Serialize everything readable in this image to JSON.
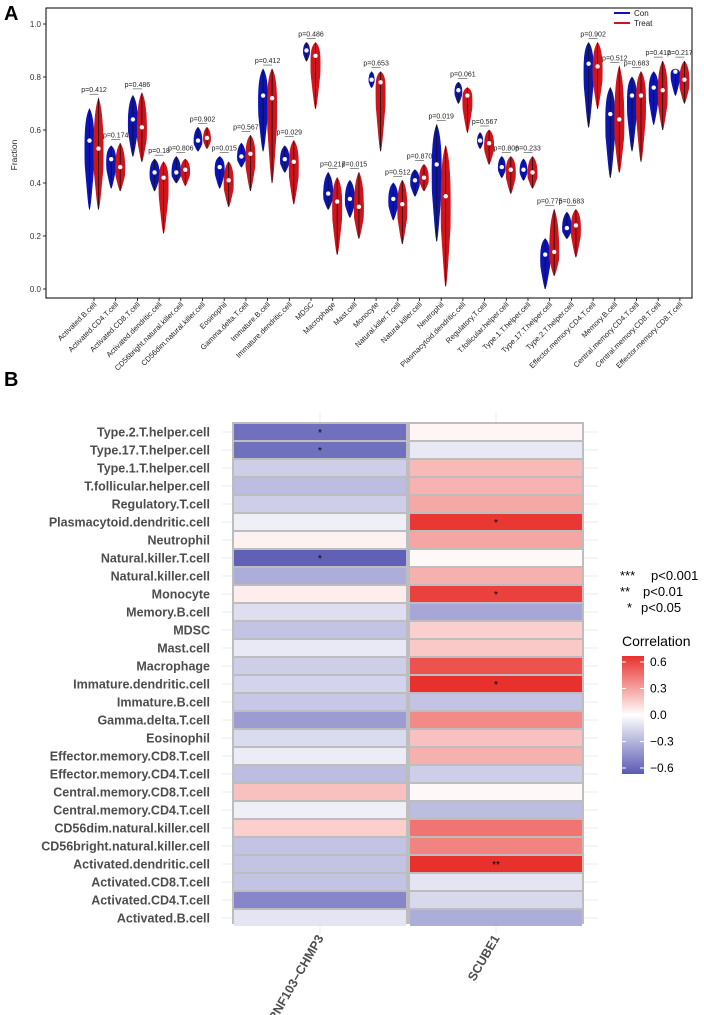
{
  "colors": {
    "con": "#0d14b4",
    "treat": "#d0141c",
    "neg": "#5a5ab4",
    "pos": "#e8302c"
  },
  "panelA": {
    "letter": "A",
    "chart_data": {
      "type": "violin",
      "ylabel": "Fraction",
      "ylim": [
        -0.05,
        1.05
      ],
      "yticks": [
        "0.0",
        "0.2",
        "0.4",
        "0.6",
        "0.8",
        "1.0"
      ],
      "legend": {
        "position": "top-right",
        "con_label": "Con",
        "treat_label": "Treat"
      },
      "categories": [
        "Activated.B.cell",
        "Activated.CD4.T.cell",
        "Activated.CD8.T.cell",
        "Activated.dendritic.cell",
        "CD56bright.natural.killer.cell",
        "CD56dim.natural.killer.cell",
        "Eosinophil",
        "Gamma.delta.T.cell",
        "Immature.B.cell",
        "Immature.dendritic.cell",
        "MDSC",
        "Macrophage",
        "Mast.cell",
        "Monocyte",
        "Natural.killer.T.cell",
        "Natural.killer.cell",
        "Neutrophil",
        "Plasmacytoid.dendritic.cell",
        "Regulatory.T.cell",
        "T.follicular.helper.cell",
        "Type.1.T.helper.cell",
        "Type.17.T.helper.cell",
        "Type.2.T.helper.cell",
        "Effector.memory.CD4.T.cell",
        "Memory.B.cell",
        "Central.memory.CD4.T.cell",
        "Central.memory.CD8.T.cell",
        "Effector.memory.CD8.T.cell"
      ],
      "pvalues": [
        "p=0.412",
        "p=0.174",
        "p=0.486",
        "p=0.18",
        "p=0.806",
        "p=0.902",
        "p=0.015",
        "p=0.567",
        "p=0.412",
        "p=0.029",
        "p=0.486",
        "p=0.217",
        "p=0.015",
        "p=0.653",
        "p=0.512",
        "p=0.870",
        "p=0.019",
        "p=0.061",
        "p=0.567",
        "p=0.806",
        "p=0.233",
        "p=0.775",
        "p=0.683",
        "p=0.902",
        "p=0.512",
        "p=0.683",
        "p=0.412",
        "p=0.217"
      ],
      "series": [
        {
          "name": "Con",
          "min": [
            0.3,
            0.38,
            0.5,
            0.37,
            0.4,
            0.52,
            0.38,
            0.46,
            0.52,
            0.44,
            0.86,
            0.3,
            0.27,
            0.76,
            0.26,
            0.35,
            0.18,
            0.7,
            0.53,
            0.42,
            0.41,
            0.0,
            0.19,
            0.61,
            0.42,
            0.52,
            0.62,
            0.73
          ],
          "max": [
            0.68,
            0.54,
            0.73,
            0.49,
            0.5,
            0.61,
            0.5,
            0.55,
            0.83,
            0.54,
            0.93,
            0.44,
            0.41,
            0.82,
            0.4,
            0.45,
            0.62,
            0.78,
            0.59,
            0.5,
            0.49,
            0.19,
            0.29,
            0.93,
            0.76,
            0.8,
            0.82,
            0.83
          ],
          "median": [
            0.56,
            0.49,
            0.64,
            0.44,
            0.44,
            0.56,
            0.46,
            0.5,
            0.73,
            0.49,
            0.9,
            0.36,
            0.34,
            0.79,
            0.34,
            0.41,
            0.47,
            0.75,
            0.56,
            0.46,
            0.45,
            0.13,
            0.23,
            0.85,
            0.66,
            0.73,
            0.76,
            0.82
          ]
        },
        {
          "name": "Treat",
          "min": [
            0.3,
            0.37,
            0.48,
            0.21,
            0.39,
            0.53,
            0.31,
            0.37,
            0.4,
            0.32,
            0.68,
            0.13,
            0.19,
            0.52,
            0.17,
            0.37,
            0.01,
            0.59,
            0.47,
            0.36,
            0.38,
            0.05,
            0.12,
            0.68,
            0.44,
            0.48,
            0.6,
            0.7
          ],
          "max": [
            0.72,
            0.55,
            0.74,
            0.48,
            0.49,
            0.61,
            0.48,
            0.58,
            0.83,
            0.56,
            0.93,
            0.42,
            0.44,
            0.82,
            0.41,
            0.47,
            0.54,
            0.76,
            0.6,
            0.5,
            0.5,
            0.3,
            0.3,
            0.93,
            0.84,
            0.82,
            0.86,
            0.86
          ],
          "median": [
            0.53,
            0.46,
            0.61,
            0.42,
            0.45,
            0.57,
            0.41,
            0.51,
            0.72,
            0.48,
            0.88,
            0.33,
            0.31,
            0.78,
            0.32,
            0.42,
            0.35,
            0.73,
            0.55,
            0.45,
            0.44,
            0.14,
            0.24,
            0.84,
            0.64,
            0.73,
            0.75,
            0.79
          ]
        }
      ]
    }
  },
  "panelB": {
    "letter": "B",
    "chart_data": {
      "type": "heatmap",
      "columns": [
        "RNF103−CHMP3",
        "SCUBE1"
      ],
      "rows": [
        "Type.2.T.helper.cell",
        "Type.17.T.helper.cell",
        "Type.1.T.helper.cell",
        "T.follicular.helper.cell",
        "Regulatory.T.cell",
        "Plasmacytoid.dendritic.cell",
        "Neutrophil",
        "Natural.killer.T.cell",
        "Natural.killer.cell",
        "Monocyte",
        "Memory.B.cell",
        "MDSC",
        "Mast.cell",
        "Macrophage",
        "Immature.dendritic.cell",
        "Immature.B.cell",
        "Gamma.delta.T.cell",
        "Eosinophil",
        "Effector.memory.CD8.T.cell",
        "Effector.memory.CD4.T.cell",
        "Central.memory.CD8.T.cell",
        "Central.memory.CD4.T.cell",
        "CD56dim.natural.killer.cell",
        "CD56bright.natural.killer.cell",
        "Activated.dendritic.cell",
        "Activated.CD8.T.cell",
        "Activated.CD4.T.cell",
        "Activated.B.cell"
      ],
      "values": [
        [
          -0.52,
          0.03
        ],
        [
          -0.52,
          -0.08
        ],
        [
          -0.18,
          0.2
        ],
        [
          -0.24,
          0.22
        ],
        [
          -0.18,
          0.25
        ],
        [
          -0.06,
          0.58
        ],
        [
          0.04,
          0.26
        ],
        [
          -0.58,
          0.02
        ],
        [
          -0.3,
          0.23
        ],
        [
          0.05,
          0.55
        ],
        [
          -0.12,
          -0.32
        ],
        [
          -0.22,
          0.14
        ],
        [
          -0.08,
          0.16
        ],
        [
          -0.18,
          0.5
        ],
        [
          -0.16,
          0.6
        ],
        [
          -0.2,
          -0.22
        ],
        [
          -0.36,
          0.34
        ],
        [
          -0.13,
          0.18
        ],
        [
          -0.07,
          0.23
        ],
        [
          -0.24,
          -0.18
        ],
        [
          0.18,
          0.02
        ],
        [
          -0.06,
          -0.24
        ],
        [
          0.14,
          0.4
        ],
        [
          -0.22,
          0.36
        ],
        [
          -0.22,
          0.64
        ],
        [
          -0.22,
          -0.1
        ],
        [
          -0.44,
          -0.14
        ],
        [
          -0.1,
          -0.3
        ]
      ],
      "stars": [
        [
          "*",
          ""
        ],
        [
          "*",
          ""
        ],
        [
          "",
          ""
        ],
        [
          "",
          ""
        ],
        [
          "",
          ""
        ],
        [
          "",
          "*"
        ],
        [
          "",
          ""
        ],
        [
          "*",
          ""
        ],
        [
          "",
          ""
        ],
        [
          "",
          "*"
        ],
        [
          "",
          ""
        ],
        [
          "",
          ""
        ],
        [
          "",
          ""
        ],
        [
          "",
          ""
        ],
        [
          "",
          "*"
        ],
        [
          "",
          ""
        ],
        [
          "",
          ""
        ],
        [
          "",
          ""
        ],
        [
          "",
          ""
        ],
        [
          "",
          ""
        ],
        [
          "",
          ""
        ],
        [
          "",
          ""
        ],
        [
          "",
          ""
        ],
        [
          "",
          ""
        ],
        [
          "",
          "**"
        ],
        [
          "",
          ""
        ],
        [
          "",
          ""
        ],
        [
          "",
          ""
        ]
      ],
      "significance": [
        {
          "stars": "***",
          "label": "p<0.001"
        },
        {
          "stars": "**",
          "label": "p<0.01"
        },
        {
          "stars": "*",
          "label": "p<0.05"
        }
      ],
      "colorbar": {
        "title": "Correlation",
        "range": [
          -0.6,
          0.6
        ],
        "ticks": [
          "0.6",
          "0.3",
          "0.0",
          "−0.3",
          "−0.6"
        ]
      }
    }
  }
}
